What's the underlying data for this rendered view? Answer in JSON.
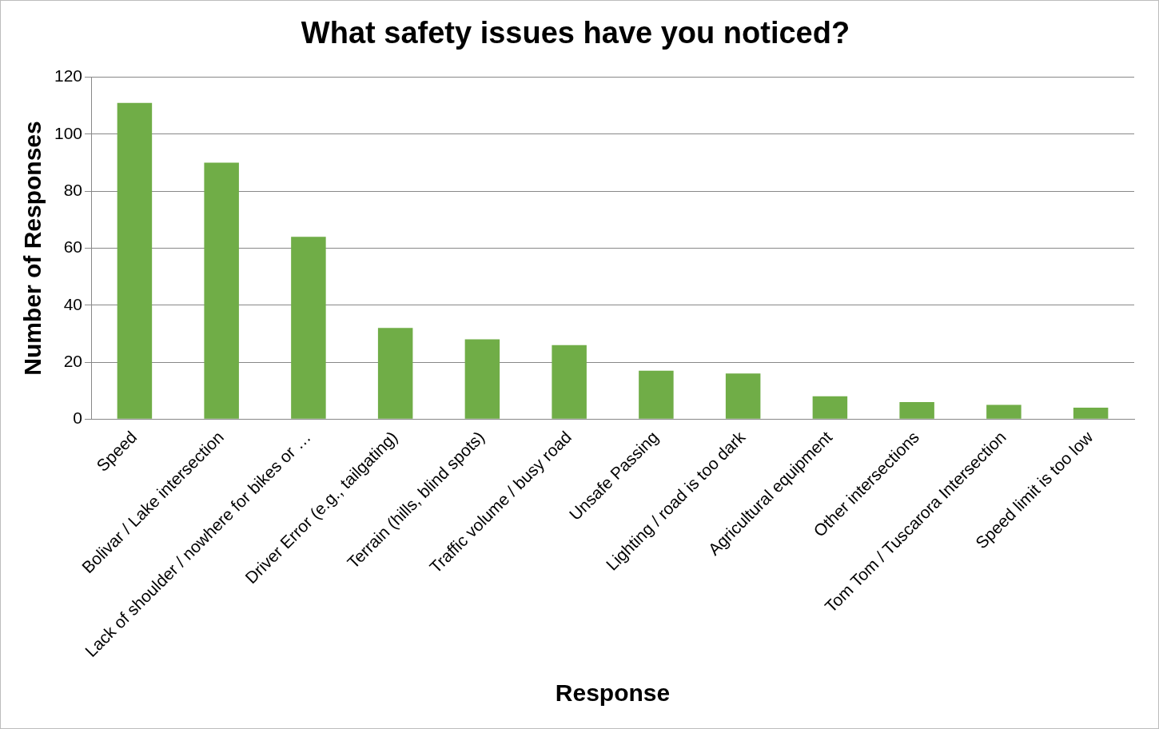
{
  "chart_data": {
    "type": "bar",
    "title": "What safety issues have you noticed?",
    "xlabel": "Response",
    "ylabel": "Number of Responses",
    "categories": [
      "Speed",
      "Bolivar / Lake intersection",
      "Lack of shoulder / nowhere for bikes or …",
      "Driver Error (e.g., tailgating)",
      "Terrain (hills, blind spots)",
      "Traffic volume / busy road",
      "Unsafe Passing",
      "Lighting / road is too dark",
      "Agricultural equipment",
      "Other intersections",
      "Tom Tom / Tuscarora Intersection",
      "Speed limit is too low"
    ],
    "values": [
      111,
      90,
      64,
      32,
      28,
      26,
      17,
      16,
      8,
      6,
      5,
      4
    ],
    "color": "#70ad47",
    "ylim": [
      0,
      120
    ],
    "yticks": [
      0,
      20,
      40,
      60,
      80,
      100,
      120
    ],
    "grid": "y",
    "legend": false
  }
}
